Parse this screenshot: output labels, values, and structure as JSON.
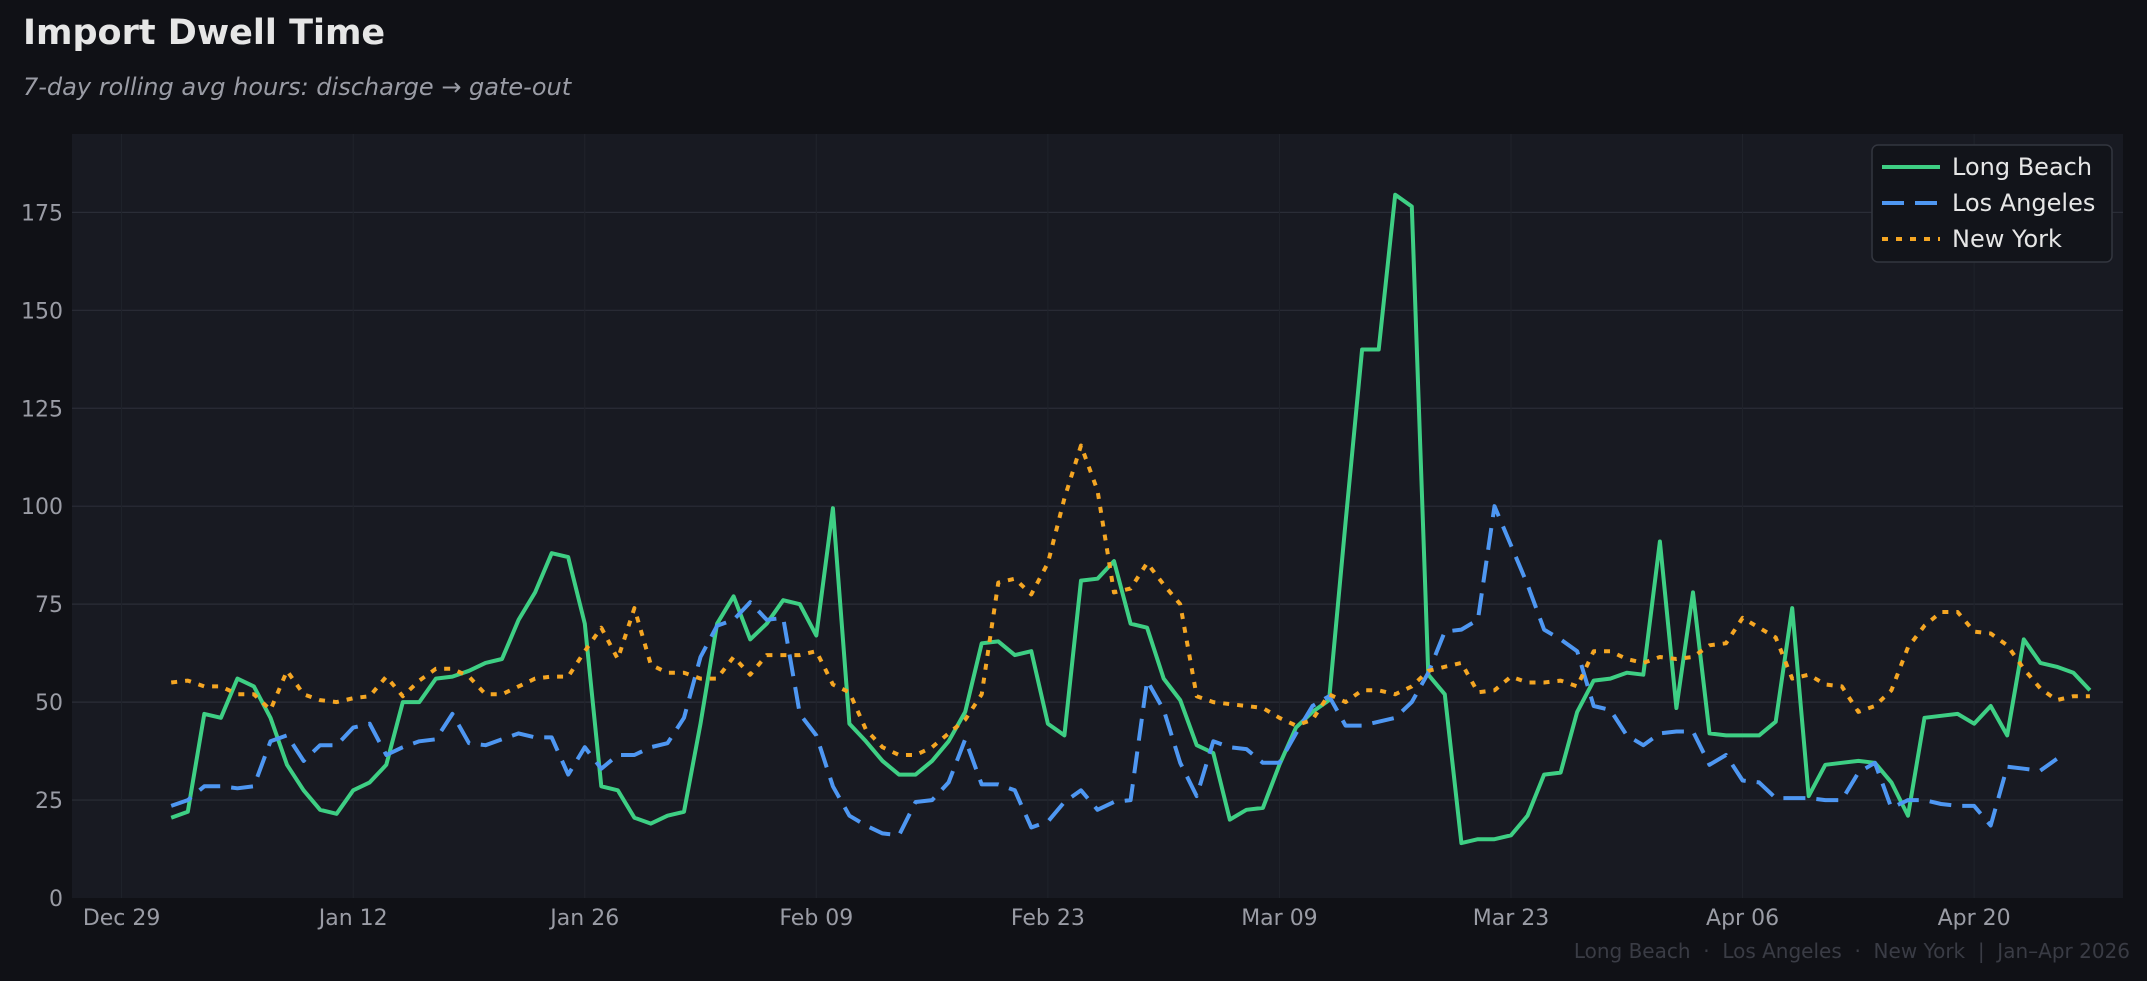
{
  "colors": {
    "page_bg": "#101116",
    "plot_bg": "#181a22",
    "grid": "#2a2d37",
    "tick_text": "#9a9ca5",
    "title_text": "#e6e6e6",
    "subtitle_text": "#9a9ca5",
    "footer_text": "#3a3c45",
    "legend_bg": "#12141a",
    "legend_border": "#33363f",
    "legend_text": "#e6e6e6"
  },
  "chart_data": {
    "type": "line",
    "title": "Import Dwell Time",
    "subtitle": "7-day rolling avg hours: discharge → gate-out",
    "footer": "Long Beach  ·  Los Angeles  ·  New York  |  Jan–Apr 2026",
    "xlabel": "",
    "ylabel": "",
    "x_range_days": [
      -3,
      121
    ],
    "ylim": [
      0,
      195
    ],
    "grid": true,
    "legend_position": "top-right",
    "x_ticks": [
      {
        "day": 0,
        "label": "Dec 29"
      },
      {
        "day": 14,
        "label": "Jan 12"
      },
      {
        "day": 28,
        "label": "Jan 26"
      },
      {
        "day": 42,
        "label": "Feb 09"
      },
      {
        "day": 56,
        "label": "Feb 23"
      },
      {
        "day": 70,
        "label": "Mar 09"
      },
      {
        "day": 84,
        "label": "Mar 23"
      },
      {
        "day": 98,
        "label": "Apr 06"
      },
      {
        "day": 112,
        "label": "Apr 20"
      }
    ],
    "y_ticks": [
      0,
      25,
      50,
      75,
      100,
      125,
      150,
      175
    ],
    "x_start_day": 3,
    "x_step_days": 1,
    "series": [
      {
        "name": "Long Beach",
        "color": "#3ecf84",
        "dash": "solid",
        "values": [
          20.5,
          22,
          47,
          46,
          56,
          54,
          46,
          34,
          27.5,
          22.5,
          21.5,
          27.5,
          29.5,
          34,
          50,
          50,
          56,
          56.5,
          58,
          60,
          61,
          71,
          78,
          88,
          87,
          70,
          28.5,
          27.5,
          20.5,
          19,
          21,
          22,
          44.5,
          70,
          77,
          66,
          70,
          76,
          75,
          67,
          99.5,
          44.5,
          40,
          35,
          31.5,
          31.5,
          35,
          40,
          47.5,
          65,
          65.5,
          62,
          63,
          44.5,
          41.5,
          81,
          81.5,
          86,
          70,
          69,
          56,
          50.5,
          39,
          37,
          20,
          22.5,
          23,
          34,
          43.5,
          47.5,
          50.5,
          96,
          140,
          140,
          179.5,
          176.5,
          57,
          52,
          14,
          15,
          15,
          16,
          21,
          31.5,
          32,
          47.5,
          55.5,
          56,
          57.5,
          57,
          91,
          48.5,
          78,
          42,
          41.5,
          41.5,
          41.5,
          45,
          74,
          26,
          34,
          34.5,
          35,
          34.5,
          29.5,
          21,
          46,
          46.5,
          47,
          44.5,
          49,
          41.5,
          66,
          60,
          59,
          57.5,
          53
        ]
      },
      {
        "name": "Los Angeles",
        "color": "#4e97f2",
        "dash": "dashed",
        "values": [
          23.5,
          25,
          28.5,
          28.5,
          28,
          28.5,
          40,
          41.5,
          35,
          39,
          39,
          43.5,
          44.5,
          36.5,
          38.5,
          40,
          40.5,
          47,
          39.5,
          39,
          40.5,
          42,
          41,
          41,
          31.5,
          38.5,
          33,
          36.5,
          36.5,
          38.5,
          39.5,
          46,
          61.5,
          69.5,
          71,
          75.5,
          71,
          71.5,
          47,
          41.5,
          28.5,
          21,
          18.5,
          16.5,
          16,
          24.5,
          25,
          29.5,
          40.5,
          29,
          29,
          27.5,
          18,
          19.5,
          24.5,
          27.5,
          22.5,
          24.5,
          25,
          55.5,
          48,
          34.5,
          26,
          40,
          38.5,
          38,
          34.5,
          34.5,
          42,
          49,
          51.5,
          44,
          44,
          45,
          46,
          50,
          57.5,
          68,
          68.5,
          71,
          100,
          90,
          80,
          68.5,
          66,
          63,
          49,
          48,
          41.5,
          39,
          42,
          42.5,
          42.5,
          34,
          36.5,
          30,
          29.5,
          25.5,
          25.5,
          25.5,
          25,
          25,
          32,
          34.5,
          23,
          25,
          25,
          24,
          23.5,
          23.5,
          18.5,
          33.5,
          33,
          32.5,
          35.5
        ]
      },
      {
        "name": "New York",
        "color": "#f5a623",
        "dash": "dotted",
        "values": [
          55,
          55.5,
          54,
          54,
          52,
          52,
          48,
          58,
          52,
          50.5,
          50,
          51,
          51.5,
          56.5,
          51.5,
          55.5,
          58.5,
          58.5,
          56.5,
          52,
          52,
          54,
          56,
          56.5,
          56.5,
          63,
          69,
          61,
          74,
          59.5,
          57.5,
          57.5,
          56,
          56,
          61.5,
          57,
          62,
          62,
          62,
          63,
          54.5,
          52.5,
          43,
          38.5,
          36.5,
          36.5,
          38.5,
          42,
          45.5,
          52,
          80.5,
          81.5,
          77.5,
          85.5,
          102,
          115.5,
          104,
          78,
          79,
          85.5,
          80,
          75,
          51.5,
          50,
          49.5,
          49,
          48.5,
          46,
          44,
          45.5,
          52,
          50,
          53,
          53,
          52,
          54,
          58,
          59,
          60,
          52.5,
          53,
          56.5,
          55,
          55,
          55.5,
          54,
          63,
          63,
          61,
          60,
          61.5,
          61,
          61.5,
          64.5,
          65,
          71.5,
          69,
          66.5,
          56,
          57,
          54.5,
          54,
          47.5,
          49,
          53,
          64,
          69.5,
          73,
          73,
          68,
          67.5,
          64.5,
          58.5,
          53.5,
          50.5,
          51.5,
          51.5
        ]
      }
    ]
  }
}
